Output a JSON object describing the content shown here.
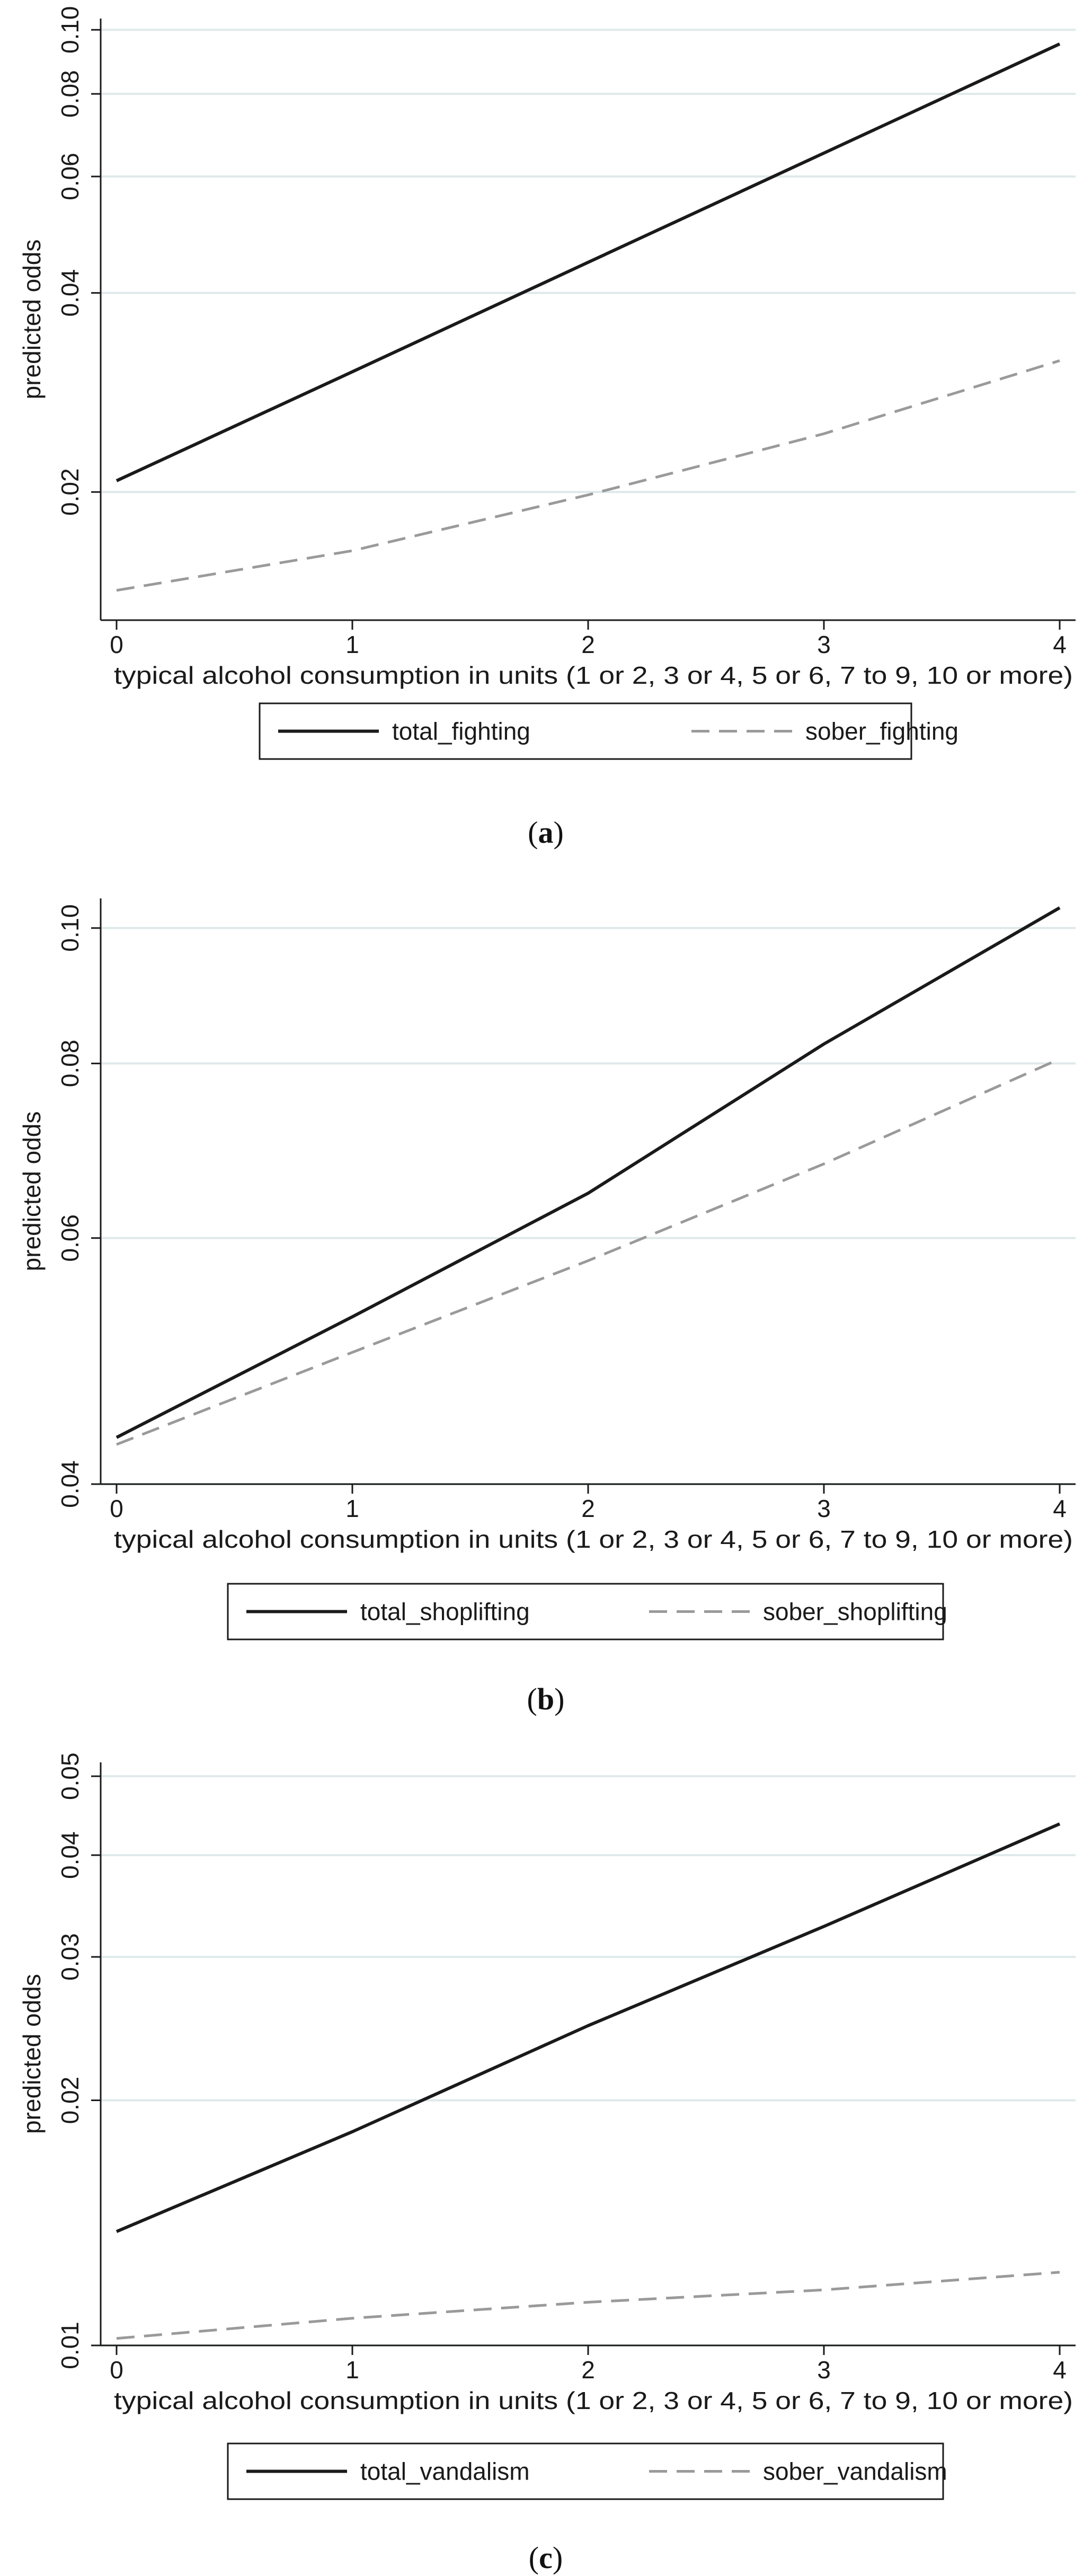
{
  "chart_data": [
    {
      "type": "line",
      "caption_letter": "a",
      "ylabel": "predicted odds",
      "xlabel": "typical alcohol consumption in units (1 or 2, 3 or 4, 5 or 6, 7 to 9, 10 or more)",
      "y_scale": "log",
      "xlim": [
        0,
        4
      ],
      "ylim": [
        0.0128,
        0.104
      ],
      "x_ticks": [
        0,
        1,
        2,
        3,
        4
      ],
      "x_tick_labels": [
        "0",
        "1",
        "2",
        "3",
        "4"
      ],
      "y_ticks": [
        0.02,
        0.04,
        0.06,
        0.08,
        0.1
      ],
      "y_tick_labels": [
        "0.02",
        "0.04",
        "0.06",
        "0.08",
        "0.10"
      ],
      "grid": true,
      "legend": "bottom",
      "series": [
        {
          "name": "total_fighting",
          "style": "solid",
          "color": "#1a1a1a",
          "x": [
            0,
            1,
            2,
            3,
            4
          ],
          "values": [
            0.0208,
            0.0304,
            0.0445,
            0.0651,
            0.0952
          ]
        },
        {
          "name": "sober_fighting",
          "style": "dashed",
          "color": "#9a9a9a",
          "x": [
            0,
            1,
            2,
            3,
            4
          ],
          "values": [
            0.0142,
            0.0163,
            0.0198,
            0.0245,
            0.0316
          ]
        }
      ]
    },
    {
      "type": "line",
      "caption_letter": "b",
      "ylabel": "predicted odds",
      "xlabel": "typical alcohol consumption in units (1 or 2, 3 or 4, 5 or 6, 7 to 9, 10 or more)",
      "y_scale": "log",
      "xlim": [
        0,
        4
      ],
      "ylim": [
        0.04,
        0.105
      ],
      "x_ticks": [
        0,
        1,
        2,
        3,
        4
      ],
      "x_tick_labels": [
        "0",
        "1",
        "2",
        "3",
        "4"
      ],
      "y_ticks": [
        0.04,
        0.06,
        0.08,
        0.1
      ],
      "y_tick_labels": [
        "0.04",
        "0.06",
        "0.08",
        "0.10"
      ],
      "grid": true,
      "legend": "bottom",
      "series": [
        {
          "name": "total_shoplifting",
          "style": "solid",
          "color": "#1a1a1a",
          "x": [
            0,
            1,
            2,
            3,
            4
          ],
          "values": [
            0.0432,
            0.0527,
            0.0646,
            0.0826,
            0.1034
          ]
        },
        {
          "name": "sober_shoplifting",
          "style": "dashed",
          "color": "#9a9a9a",
          "x": [
            0,
            1,
            2,
            3,
            4
          ],
          "values": [
            0.0427,
            0.0497,
            0.0578,
            0.0678,
            0.0806
          ]
        }
      ]
    },
    {
      "type": "line",
      "caption_letter": "c",
      "ylabel": "predicted odds",
      "xlabel": "typical alcohol consumption in units (1 or 2, 3 or 4, 5 or 6, 7 to 9, 10 or more)",
      "y_scale": "log",
      "xlim": [
        0,
        4
      ],
      "ylim": [
        0.01,
        0.052
      ],
      "x_ticks": [
        0,
        1,
        2,
        3,
        4
      ],
      "x_tick_labels": [
        "0",
        "1",
        "2",
        "3",
        "4"
      ],
      "y_ticks": [
        0.01,
        0.02,
        0.03,
        0.04,
        0.05
      ],
      "y_tick_labels": [
        "0.01",
        "0.02",
        "0.03",
        "0.04",
        "0.05"
      ],
      "grid": true,
      "legend": "bottom",
      "series": [
        {
          "name": "total_vandalism",
          "style": "solid",
          "color": "#1a1a1a",
          "x": [
            0,
            1,
            2,
            3,
            4
          ],
          "values": [
            0.0138,
            0.0183,
            0.0247,
            0.0327,
            0.0437
          ]
        },
        {
          "name": "sober_vandalism",
          "style": "dashed",
          "color": "#9a9a9a",
          "x": [
            0,
            1,
            2,
            3,
            4
          ],
          "values": [
            0.0102,
            0.0108,
            0.0113,
            0.0117,
            0.0123
          ]
        }
      ]
    }
  ],
  "colors": {
    "axis": "#1a1a1a",
    "grid": "#dfe9ea",
    "background": "#ffffff"
  }
}
